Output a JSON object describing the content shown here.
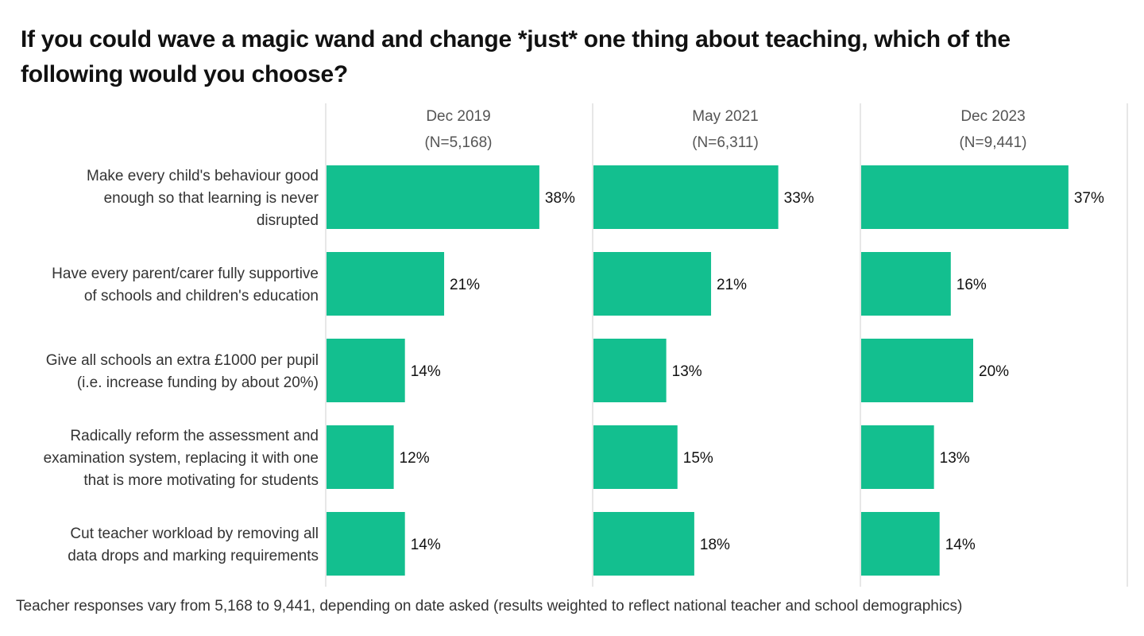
{
  "chart_data": {
    "type": "bar",
    "orientation": "horizontal",
    "title": "If you could wave a magic wand and change *just* one thing about teaching, which of the following would you choose?",
    "categories": [
      [
        "Make every child's behaviour good",
        "enough so that learning is never",
        "disrupted"
      ],
      [
        "Have every parent/carer fully supportive",
        "of schools and children's education"
      ],
      [
        "Give all schools an extra £1000 per pupil",
        "(i.e. increase funding by about 20%)"
      ],
      [
        "Radically reform the assessment and",
        "examination system, replacing it with one",
        "that is more motivating for students"
      ],
      [
        "Cut teacher workload by removing all",
        "data drops and marking requirements"
      ]
    ],
    "series": [
      {
        "name": "Dec 2019",
        "n_label": "(N=5,168)",
        "values": [
          38,
          21,
          14,
          12,
          14
        ]
      },
      {
        "name": "May 2021",
        "n_label": "(N=6,311)",
        "values": [
          33,
          21,
          13,
          15,
          18
        ]
      },
      {
        "name": "Dec 2023",
        "n_label": "(N=9,441)",
        "values": [
          37,
          16,
          20,
          13,
          14
        ]
      }
    ],
    "value_suffix": "%",
    "xlim": [
      0,
      45
    ],
    "bar_color": "#13bf8f",
    "grid": false,
    "legend": "none"
  },
  "footnote": "Teacher responses vary from 5,168 to 9,441, depending on date asked (results weighted to reflect national teacher and school demographics)"
}
